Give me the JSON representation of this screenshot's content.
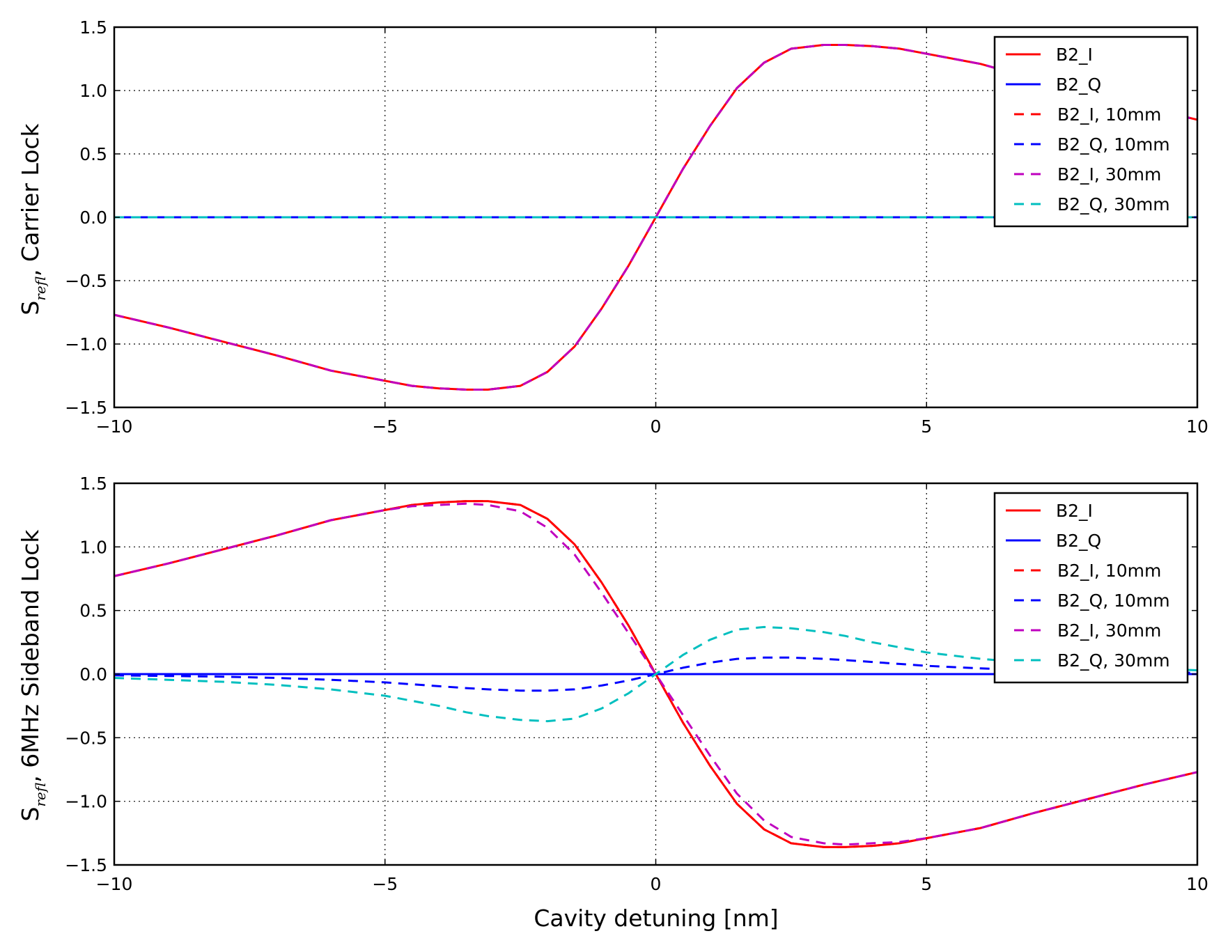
{
  "figure": {
    "xlabel": "Cavity detuning [nm]"
  },
  "chart_data": [
    {
      "type": "line",
      "ylabel_main": "S",
      "ylabel_sub": "refl",
      "ylabel_rest": ", Carrier Lock",
      "xlim": [
        -10,
        10
      ],
      "ylim": [
        -1.5,
        1.5
      ],
      "xticks": [
        -10,
        -5,
        0,
        5,
        10
      ],
      "xtick_labels": [
        "−10",
        "−5",
        "0",
        "5",
        "10"
      ],
      "yticks": [
        -1.5,
        -1.0,
        -0.5,
        0.0,
        0.5,
        1.0,
        1.5
      ],
      "ytick_labels": [
        "−1.5",
        "−1.0",
        "−0.5",
        "0.0",
        "0.5",
        "1.0",
        "1.5"
      ],
      "grid": true,
      "legend_position": "top-right",
      "x": [
        -10,
        -9,
        -8,
        -7,
        -6,
        -5,
        -4.5,
        -4,
        -3.5,
        -3.1,
        -2.5,
        -2,
        -1.5,
        -1,
        -0.5,
        0,
        0.5,
        1,
        1.5,
        2,
        2.5,
        3.1,
        3.5,
        4,
        4.5,
        5,
        6,
        7,
        8,
        9,
        10
      ],
      "series": [
        {
          "name": "B2_I",
          "color": "#ff0000",
          "dash": "solid",
          "values": [
            -0.77,
            -0.87,
            -0.98,
            -1.09,
            -1.21,
            -1.29,
            -1.33,
            -1.35,
            -1.36,
            -1.36,
            -1.33,
            -1.22,
            -1.02,
            -0.72,
            -0.38,
            0.0,
            0.38,
            0.72,
            1.02,
            1.22,
            1.33,
            1.36,
            1.36,
            1.35,
            1.33,
            1.29,
            1.21,
            1.09,
            0.98,
            0.87,
            0.77
          ]
        },
        {
          "name": "B2_Q",
          "color": "#0000ff",
          "dash": "solid",
          "values": [
            0,
            0,
            0,
            0,
            0,
            0,
            0,
            0,
            0,
            0,
            0,
            0,
            0,
            0,
            0,
            0,
            0,
            0,
            0,
            0,
            0,
            0,
            0,
            0,
            0,
            0,
            0,
            0,
            0,
            0,
            0
          ]
        },
        {
          "name": "B2_I, 10mm",
          "color": "#ff0000",
          "dash": "dashed",
          "values": [
            -0.77,
            -0.87,
            -0.98,
            -1.09,
            -1.21,
            -1.29,
            -1.33,
            -1.35,
            -1.36,
            -1.36,
            -1.33,
            -1.22,
            -1.02,
            -0.72,
            -0.38,
            0.0,
            0.38,
            0.72,
            1.02,
            1.22,
            1.33,
            1.36,
            1.36,
            1.35,
            1.33,
            1.29,
            1.21,
            1.09,
            0.98,
            0.87,
            0.77
          ]
        },
        {
          "name": "B2_Q, 10mm",
          "color": "#0000ff",
          "dash": "dashed",
          "values": [
            0,
            0,
            0,
            0,
            0,
            0,
            0,
            0,
            0,
            0,
            0,
            0,
            0,
            0,
            0,
            0,
            0,
            0,
            0,
            0,
            0,
            0,
            0,
            0,
            0,
            0,
            0,
            0,
            0,
            0,
            0
          ]
        },
        {
          "name": "B2_I, 30mm",
          "color": "#bf00bf",
          "dash": "dashed",
          "values": [
            -0.77,
            -0.87,
            -0.98,
            -1.09,
            -1.21,
            -1.29,
            -1.33,
            -1.35,
            -1.36,
            -1.36,
            -1.33,
            -1.22,
            -1.02,
            -0.72,
            -0.38,
            0.0,
            0.38,
            0.72,
            1.02,
            1.22,
            1.33,
            1.36,
            1.36,
            1.35,
            1.33,
            1.29,
            1.21,
            1.09,
            0.98,
            0.87,
            0.77
          ]
        },
        {
          "name": "B2_Q, 30mm",
          "color": "#00bfbf",
          "dash": "dashed",
          "values": [
            0,
            0,
            0,
            0,
            0,
            0,
            0,
            0,
            0,
            0,
            0,
            0,
            0,
            0,
            0,
            0,
            0,
            0,
            0,
            0,
            0,
            0,
            0,
            0,
            0,
            0,
            0,
            0,
            0,
            0,
            0
          ]
        }
      ]
    },
    {
      "type": "line",
      "ylabel_main": "S",
      "ylabel_sub": "refl",
      "ylabel_rest": ", 6MHz Sideband Lock",
      "xlim": [
        -10,
        10
      ],
      "ylim": [
        -1.5,
        1.5
      ],
      "xticks": [
        -10,
        -5,
        0,
        5,
        10
      ],
      "xtick_labels": [
        "−10",
        "−5",
        "0",
        "5",
        "10"
      ],
      "yticks": [
        -1.5,
        -1.0,
        -0.5,
        0.0,
        0.5,
        1.0,
        1.5
      ],
      "ytick_labels": [
        "−1.5",
        "−1.0",
        "−0.5",
        "0.0",
        "0.5",
        "1.0",
        "1.5"
      ],
      "grid": true,
      "legend_position": "top-right",
      "x": [
        -10,
        -9,
        -8,
        -7,
        -6,
        -5,
        -4.5,
        -4,
        -3.5,
        -3.1,
        -2.5,
        -2,
        -1.5,
        -1,
        -0.5,
        0,
        0.5,
        1,
        1.5,
        2,
        2.5,
        3.1,
        3.5,
        4,
        4.5,
        5,
        6,
        7,
        8,
        9,
        10
      ],
      "series": [
        {
          "name": "B2_I",
          "color": "#ff0000",
          "dash": "solid",
          "values": [
            0.77,
            0.87,
            0.98,
            1.09,
            1.21,
            1.29,
            1.33,
            1.35,
            1.36,
            1.36,
            1.33,
            1.22,
            1.02,
            0.72,
            0.38,
            0.0,
            -0.38,
            -0.72,
            -1.02,
            -1.22,
            -1.33,
            -1.36,
            -1.36,
            -1.35,
            -1.33,
            -1.29,
            -1.21,
            -1.09,
            -0.98,
            -0.87,
            -0.77
          ]
        },
        {
          "name": "B2_Q",
          "color": "#0000ff",
          "dash": "solid",
          "values": [
            0,
            0,
            0,
            0,
            0,
            0,
            0,
            0,
            0,
            0,
            0,
            0,
            0,
            0,
            0,
            0,
            0,
            0,
            0,
            0,
            0,
            0,
            0,
            0,
            0,
            0,
            0,
            0,
            0,
            0,
            0
          ]
        },
        {
          "name": "B2_I, 10mm",
          "color": "#ff0000",
          "dash": "dashed",
          "values": [
            0.77,
            0.87,
            0.98,
            1.09,
            1.21,
            1.29,
            1.33,
            1.35,
            1.36,
            1.36,
            1.33,
            1.22,
            1.02,
            0.72,
            0.38,
            0.0,
            -0.38,
            -0.72,
            -1.02,
            -1.22,
            -1.33,
            -1.36,
            -1.36,
            -1.35,
            -1.33,
            -1.29,
            -1.21,
            -1.09,
            -0.98,
            -0.87,
            -0.77
          ]
        },
        {
          "name": "B2_Q, 10mm",
          "color": "#0000ff",
          "dash": "dashed",
          "values": [
            -0.01,
            -0.015,
            -0.02,
            -0.03,
            -0.045,
            -0.065,
            -0.08,
            -0.095,
            -0.11,
            -0.12,
            -0.13,
            -0.13,
            -0.12,
            -0.09,
            -0.05,
            0.0,
            0.05,
            0.09,
            0.12,
            0.13,
            0.13,
            0.12,
            0.11,
            0.095,
            0.08,
            0.065,
            0.045,
            0.03,
            0.02,
            0.015,
            0.01
          ]
        },
        {
          "name": "B2_I, 30mm",
          "color": "#bf00bf",
          "dash": "dashed",
          "values": [
            0.77,
            0.87,
            0.98,
            1.09,
            1.21,
            1.29,
            1.32,
            1.33,
            1.34,
            1.33,
            1.28,
            1.15,
            0.94,
            0.64,
            0.32,
            0.0,
            -0.32,
            -0.64,
            -0.94,
            -1.15,
            -1.28,
            -1.33,
            -1.34,
            -1.33,
            -1.32,
            -1.29,
            -1.21,
            -1.09,
            -0.98,
            -0.87,
            -0.77
          ]
        },
        {
          "name": "B2_Q, 30mm",
          "color": "#00bfbf",
          "dash": "dashed",
          "values": [
            -0.03,
            -0.045,
            -0.06,
            -0.085,
            -0.12,
            -0.17,
            -0.21,
            -0.25,
            -0.3,
            -0.33,
            -0.36,
            -0.37,
            -0.35,
            -0.27,
            -0.15,
            0.0,
            0.15,
            0.27,
            0.35,
            0.37,
            0.36,
            0.33,
            0.3,
            0.25,
            0.21,
            0.17,
            0.12,
            0.085,
            0.06,
            0.045,
            0.03
          ]
        }
      ]
    }
  ]
}
